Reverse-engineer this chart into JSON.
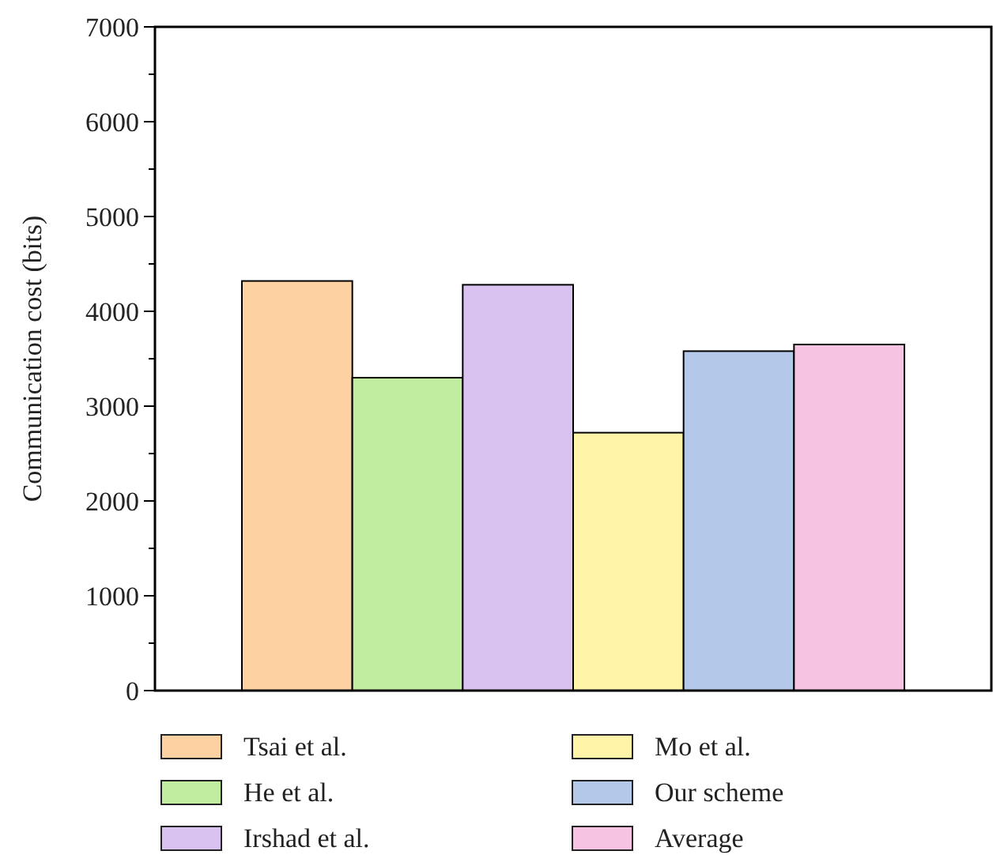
{
  "chart_data": {
    "type": "bar",
    "ylabel": "Communication cost (bits)",
    "categories": [
      null
    ],
    "ylim": [
      0,
      7000
    ],
    "yticks": [
      0,
      {
        "value": 500,
        "label": null
      },
      1000,
      {
        "value": 1500,
        "label": null
      },
      2000,
      {
        "value": 2500,
        "label": null
      },
      3000,
      {
        "value": 3500,
        "label": null
      },
      4000,
      {
        "value": 4500,
        "label": null
      },
      5000,
      {
        "value": 5500,
        "label": null
      },
      6000,
      {
        "value": 6500,
        "label": null
      },
      7000
    ],
    "grid": false,
    "legend": "bottom",
    "series": [
      {
        "name": "Tsai et al.",
        "color": "#fdd1a1",
        "values": [
          4320
        ]
      },
      {
        "name": "He et al.",
        "color": "#c0eda0",
        "values": [
          3300
        ]
      },
      {
        "name": "Irshad et al.",
        "color": "#d9c2f0",
        "values": [
          4280
        ]
      },
      {
        "name": "Mo et al.",
        "color": "#fff4a8",
        "values": [
          2720
        ]
      },
      {
        "name": "Our scheme",
        "color": "#b4c8ea",
        "values": [
          3580
        ]
      },
      {
        "name": "Average",
        "color": "#f6c3e3",
        "values": [
          3650
        ]
      }
    ]
  }
}
